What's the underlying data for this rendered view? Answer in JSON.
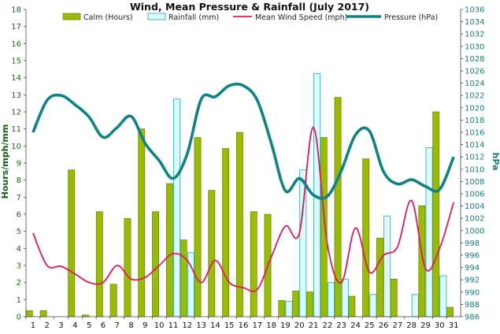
{
  "chart_data": {
    "type": "bar",
    "title": "Wind, Mean Pressure & Rainfall (July 2017)",
    "ylabel": "Hours/mph/mm",
    "y2label": "hPa",
    "ylim": [
      0,
      18
    ],
    "y2lim": [
      986,
      1036
    ],
    "xticks": [
      "1",
      "2",
      "3",
      "4",
      "5",
      "6",
      "7",
      "8",
      "9",
      "10",
      "11",
      "12",
      "13",
      "14",
      "15",
      "16",
      "17",
      "18",
      "19",
      "20",
      "21",
      "22",
      "23",
      "24",
      "25",
      "26",
      "27",
      "28",
      "29",
      "30",
      "31"
    ],
    "yticks": [
      "0",
      "1",
      "2",
      "3",
      "4",
      "5",
      "6",
      "7",
      "8",
      "9",
      "10",
      "11",
      "12",
      "13",
      "14",
      "15",
      "16",
      "17",
      "18"
    ],
    "y2ticks": [
      "986",
      "988",
      "990",
      "992",
      "994",
      "996",
      "998",
      "1000",
      "1002",
      "1004",
      "1006",
      "1008",
      "1010",
      "1012",
      "1014",
      "1016",
      "1018",
      "1020",
      "1022",
      "1024",
      "1026",
      "1028",
      "1030",
      "1032",
      "1034",
      "1036"
    ],
    "legend": {
      "position": "top",
      "entries": [
        "Calm (Hours)",
        "Rainfall (mm)",
        "Mean Wind Speed (mph)",
        "Pressure (hPa)"
      ]
    },
    "grid": false,
    "colors": {
      "calm": "#99bb00",
      "calm_stroke": "#5a7000",
      "rain": "#dcfafa",
      "rain_stroke": "#2aa6a6",
      "wind": "#e0185e",
      "pressure": "#0f8283",
      "axis_text_right": "#0f8283",
      "axis_text_left": "#1a6a1a"
    },
    "series": [
      {
        "name": "Calm (Hours)",
        "kind": "bar",
        "axis": "left",
        "values": [
          0.35,
          0.35,
          0,
          8.6,
          0.1,
          6.15,
          1.9,
          5.75,
          11.0,
          6.15,
          7.8,
          4.5,
          10.5,
          7.4,
          9.85,
          10.8,
          6.15,
          6.0,
          0.95,
          1.5,
          1.45,
          10.5,
          12.85,
          1.2,
          9.25,
          4.6,
          2.2,
          0,
          6.5,
          12.0,
          0.55
        ]
      },
      {
        "name": "Rainfall (mm)",
        "kind": "bar",
        "axis": "left",
        "values": [
          0,
          0,
          0,
          0,
          0,
          0,
          0,
          0,
          0,
          0,
          12.75,
          3.75,
          0,
          0,
          0,
          0,
          0,
          0,
          0.9,
          8.6,
          14.25,
          2.0,
          2.2,
          0,
          1.3,
          5.9,
          0,
          1.3,
          9.9,
          2.4,
          0
        ]
      },
      {
        "name": "Mean Wind Speed (mph)",
        "kind": "line",
        "axis": "left",
        "values": [
          4.9,
          3.0,
          2.95,
          2.5,
          2.0,
          2.0,
          3.0,
          2.2,
          2.3,
          3.0,
          3.7,
          3.3,
          2.0,
          3.3,
          2.0,
          1.7,
          1.6,
          3.5,
          5.3,
          4.9,
          11.1,
          4.2,
          2.0,
          5.2,
          2.6,
          3.6,
          4.1,
          6.8,
          2.8,
          4.0,
          6.7
        ]
      },
      {
        "name": "Pressure (hPa)",
        "kind": "line",
        "axis": "right",
        "values": [
          1016,
          1021.2,
          1022,
          1020.5,
          1018.5,
          1015.2,
          1016.8,
          1018.6,
          1014.2,
          1011.4,
          1008.5,
          1012.5,
          1021.4,
          1021.8,
          1023.6,
          1023.6,
          1021.2,
          1014.2,
          1006.5,
          1008.5,
          1005.8,
          1005.6,
          1009.8,
          1015.6,
          1016.2,
          1009.6,
          1007.6,
          1008.3,
          1007.2,
          1006.7,
          1012
        ]
      }
    ]
  }
}
